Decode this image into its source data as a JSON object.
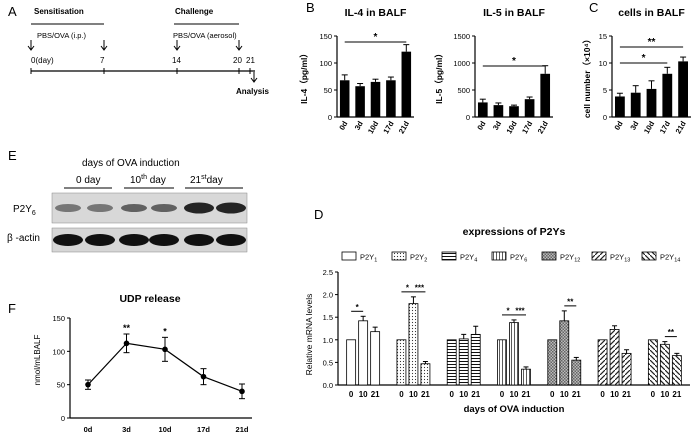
{
  "panels": {
    "a": "A",
    "b": "B",
    "c": "C",
    "d": "D",
    "e": "E",
    "f": "F"
  },
  "timeline": {
    "sensitisation": "Sensitisation",
    "challenge": "Challenge",
    "sens_treat": "PBS/OVA (i.p.)",
    "chal_treat": "PBS/OVA (aerosol)",
    "ticks": [
      "0(day)",
      "7",
      "14",
      "20",
      "21"
    ],
    "analysis": "Analysis"
  },
  "western": {
    "header": "days of OVA induction",
    "groups": [
      "0 day",
      "10th day",
      "21st day"
    ],
    "rows": [
      "P2Y6",
      "β -actin"
    ],
    "row_labels": {
      "p2y6_main": "P2Y",
      "p2y6_sub": "6",
      "actin": "β -actin"
    },
    "group_labels": [
      {
        "main": "0 day",
        "sup": ""
      },
      {
        "main": "10",
        "sup": "th",
        "rest": " day"
      },
      {
        "main": "21",
        "sup": "st",
        "rest": "day"
      }
    ]
  },
  "chart_data": [
    {
      "id": "B-left",
      "type": "bar",
      "title": "IL-4 in BALF",
      "ylabel": "IL-4（pg/ml）",
      "categories": [
        "0d",
        "3d",
        "10d",
        "17d",
        "21d"
      ],
      "values": [
        68,
        57,
        65,
        68,
        121
      ],
      "errors": [
        10,
        5,
        5,
        6,
        13
      ],
      "ylim": [
        0,
        150
      ],
      "yticks": [
        0,
        50,
        100,
        150
      ],
      "significance": [
        {
          "from": "0d",
          "to": "21d",
          "label": "*"
        }
      ]
    },
    {
      "id": "B-right",
      "type": "bar",
      "title": "IL-5 in BALF",
      "ylabel": "IL-5（pg/ml）",
      "categories": [
        "0d",
        "3d",
        "10d",
        "17d",
        "21d"
      ],
      "values": [
        270,
        220,
        200,
        330,
        800
      ],
      "errors": [
        60,
        40,
        20,
        40,
        150
      ],
      "ylim": [
        0,
        1500
      ],
      "yticks": [
        0,
        500,
        1000,
        1500
      ],
      "significance": [
        {
          "from": "0d",
          "to": "21d",
          "label": "*"
        }
      ]
    },
    {
      "id": "C",
      "type": "bar",
      "title": "cells in BALF",
      "ylabel": "cell number（×10⁴）",
      "categories": [
        "0d",
        "3d",
        "10d",
        "17d",
        "21d"
      ],
      "values": [
        3.8,
        4.5,
        5.2,
        8.0,
        10.3
      ],
      "errors": [
        0.6,
        1.3,
        1.5,
        1.2,
        0.8
      ],
      "ylim": [
        0,
        15
      ],
      "yticks": [
        0,
        5,
        10,
        15
      ],
      "significance": [
        {
          "from": "0d",
          "to": "17d",
          "label": "*"
        },
        {
          "from": "0d",
          "to": "21d",
          "label": "**"
        }
      ]
    },
    {
      "id": "D",
      "type": "bar",
      "title": "expressions of P2Ys",
      "ylabel": "Relative mRNA levels",
      "xlabel": "days of OVA induction",
      "ylim": [
        0,
        2.5
      ],
      "yticks": [
        0.0,
        0.5,
        1.0,
        1.5,
        2.0,
        2.5
      ],
      "day_labels": [
        "0",
        "10",
        "21"
      ],
      "series": [
        {
          "name": "P2Y1",
          "base": "P2Y",
          "sub": "1",
          "values": [
            1.0,
            1.42,
            1.18
          ],
          "errors": [
            0,
            0.1,
            0.1
          ],
          "significance": [
            {
              "from": 0,
              "to": 1,
              "label": "*"
            }
          ]
        },
        {
          "name": "P2Y2",
          "base": "P2Y",
          "sub": "2",
          "values": [
            1.0,
            1.8,
            0.47
          ],
          "errors": [
            0,
            0.15,
            0.05
          ],
          "significance": [
            {
              "from": 0,
              "to": 1,
              "label": "*"
            },
            {
              "from": 1,
              "to": 2,
              "label": "***"
            }
          ]
        },
        {
          "name": "P2Y4",
          "base": "P2Y",
          "sub": "4",
          "values": [
            1.0,
            1.02,
            1.12
          ],
          "errors": [
            0,
            0.1,
            0.18
          ],
          "significance": []
        },
        {
          "name": "P2Y6",
          "base": "P2Y",
          "sub": "6",
          "values": [
            1.0,
            1.38,
            0.35
          ],
          "errors": [
            0,
            0.06,
            0.05
          ],
          "significance": [
            {
              "from": 0,
              "to": 1,
              "label": "*"
            },
            {
              "from": 1,
              "to": 2,
              "label": "***"
            }
          ]
        },
        {
          "name": "P2Y12",
          "base": "P2Y",
          "sub": "12",
          "values": [
            1.0,
            1.42,
            0.55
          ],
          "errors": [
            0,
            0.22,
            0.06
          ],
          "significance": [
            {
              "from": 1,
              "to": 2,
              "label": "**"
            }
          ]
        },
        {
          "name": "P2Y13",
          "base": "P2Y",
          "sub": "13",
          "values": [
            1.0,
            1.23,
            0.7
          ],
          "errors": [
            0,
            0.08,
            0.08
          ],
          "significance": []
        },
        {
          "name": "P2Y14",
          "base": "P2Y",
          "sub": "14",
          "values": [
            1.0,
            0.9,
            0.65
          ],
          "errors": [
            0,
            0.06,
            0.05
          ],
          "significance": [
            {
              "from": 1,
              "to": 2,
              "label": "**"
            }
          ]
        }
      ]
    },
    {
      "id": "F",
      "type": "line",
      "title": "UDP release",
      "ylabel": "nmol/mLBALF",
      "categories": [
        "0d",
        "3d",
        "10d",
        "17d",
        "21d"
      ],
      "values": [
        50,
        112,
        103,
        62,
        40
      ],
      "errors": [
        7,
        14,
        18,
        12,
        11
      ],
      "ylim": [
        0,
        150
      ],
      "yticks": [
        0,
        50,
        100,
        150
      ],
      "annotations": [
        {
          "at": "3d",
          "label": "**"
        },
        {
          "at": "10d",
          "label": "*"
        }
      ]
    }
  ]
}
